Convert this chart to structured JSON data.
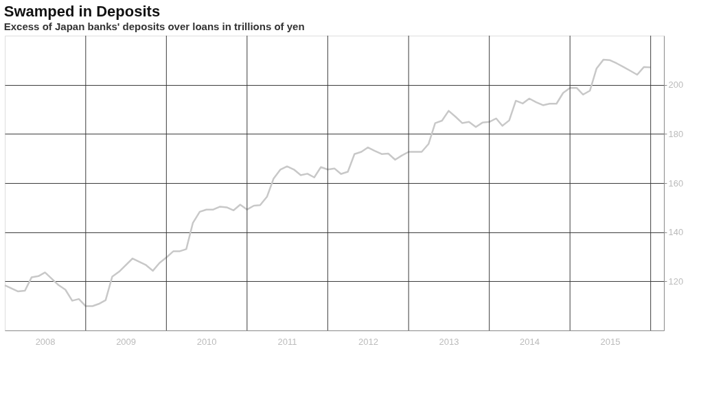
{
  "chart_data": {
    "type": "line",
    "title": "Swamped in Deposits",
    "subtitle": "Excess of Japan banks' deposits over loans in trillions of yen",
    "x": [
      "2008-01",
      "2008-03",
      "2008-04",
      "2008-05",
      "2008-06",
      "2008-07",
      "2008-09",
      "2008-10",
      "2008-11",
      "2008-12",
      "2009-01",
      "2009-02",
      "2009-03",
      "2009-04",
      "2009-05",
      "2009-06",
      "2009-08",
      "2009-10",
      "2009-11",
      "2009-12",
      "2010-01",
      "2010-02",
      "2010-03",
      "2010-04",
      "2010-05",
      "2010-06",
      "2010-07",
      "2010-08",
      "2010-09",
      "2010-10",
      "2010-11",
      "2010-12",
      "2011-01",
      "2011-02",
      "2011-03",
      "2011-04",
      "2011-05",
      "2011-06",
      "2011-07",
      "2011-08",
      "2011-09",
      "2011-10",
      "2011-11",
      "2011-12",
      "2012-01",
      "2012-02",
      "2012-03",
      "2012-04",
      "2012-05",
      "2012-06",
      "2012-07",
      "2012-08",
      "2012-09",
      "2012-10",
      "2012-11",
      "2012-12",
      "2013-01",
      "2013-02",
      "2013-03",
      "2013-04",
      "2013-05",
      "2013-06",
      "2013-07",
      "2013-08",
      "2013-09",
      "2013-10",
      "2013-11",
      "2013-12",
      "2014-01",
      "2014-02",
      "2014-03",
      "2014-04",
      "2014-05",
      "2014-06",
      "2014-07",
      "2014-08",
      "2014-09",
      "2014-10",
      "2014-11",
      "2014-12",
      "2015-01",
      "2015-02",
      "2015-03",
      "2015-04",
      "2015-05",
      "2015-06",
      "2015-07",
      "2015-08",
      "2015-09",
      "2015-10",
      "2015-11",
      "2015-12",
      "2016-01"
    ],
    "series": [
      {
        "color": "#c8c8c8",
        "values": [
          118.4,
          115.9,
          116.2,
          121.6,
          122.1,
          123.6,
          118.4,
          116.6,
          112.1,
          112.8,
          109.9,
          109.9,
          110.8,
          112.3,
          121.9,
          123.9,
          129.3,
          126.6,
          124.3,
          127.5,
          129.7,
          132.2,
          132.2,
          133.1,
          143.8,
          148.3,
          149.2,
          149.2,
          150.4,
          150.1,
          148.9,
          151.2,
          149.2,
          150.8,
          151.0,
          154.4,
          161.8,
          165.5,
          166.8,
          165.5,
          163.2,
          163.8,
          162.3,
          166.5,
          165.5,
          165.9,
          163.7,
          164.6,
          171.8,
          172.7,
          174.5,
          173.1,
          171.8,
          172.0,
          169.5,
          171.2,
          172.7,
          172.7,
          172.7,
          175.9,
          184.4,
          185.4,
          189.4,
          187.0,
          184.4,
          184.9,
          182.8,
          184.6,
          184.9,
          186.3,
          183.3,
          185.5,
          193.5,
          192.4,
          194.4,
          192.9,
          191.7,
          192.3,
          192.3,
          196.7,
          198.7,
          198.7,
          196.0,
          197.6,
          206.6,
          210.2,
          210.0,
          208.7,
          207.2,
          205.7,
          204.1,
          207.2,
          207.1
        ]
      }
    ],
    "xlim": [
      "2008-01",
      "2016-03"
    ],
    "xticks": [
      {
        "value": "2008-07",
        "label": "2008"
      },
      {
        "value": "2009-07",
        "label": "2009"
      },
      {
        "value": "2010-07",
        "label": "2010"
      },
      {
        "value": "2011-07",
        "label": "2011"
      },
      {
        "value": "2012-07",
        "label": "2012"
      },
      {
        "value": "2013-07",
        "label": "2013"
      },
      {
        "value": "2014-07",
        "label": "2014"
      },
      {
        "value": "2015-07",
        "label": "2015"
      },
      {
        "value": "2009-01",
        "label": null
      },
      {
        "value": "2010-01",
        "label": null
      },
      {
        "value": "2011-01",
        "label": null
      },
      {
        "value": "2012-01",
        "label": null
      },
      {
        "value": "2013-01",
        "label": null
      },
      {
        "value": "2014-01",
        "label": null
      },
      {
        "value": "2015-01",
        "label": null
      },
      {
        "value": "2016-01",
        "label": null
      }
    ],
    "ylim": [
      100,
      220
    ],
    "yticks": [
      120,
      140,
      160,
      180,
      200
    ],
    "grid": true,
    "legend": false,
    "marker": "none",
    "line_style": "solid"
  }
}
